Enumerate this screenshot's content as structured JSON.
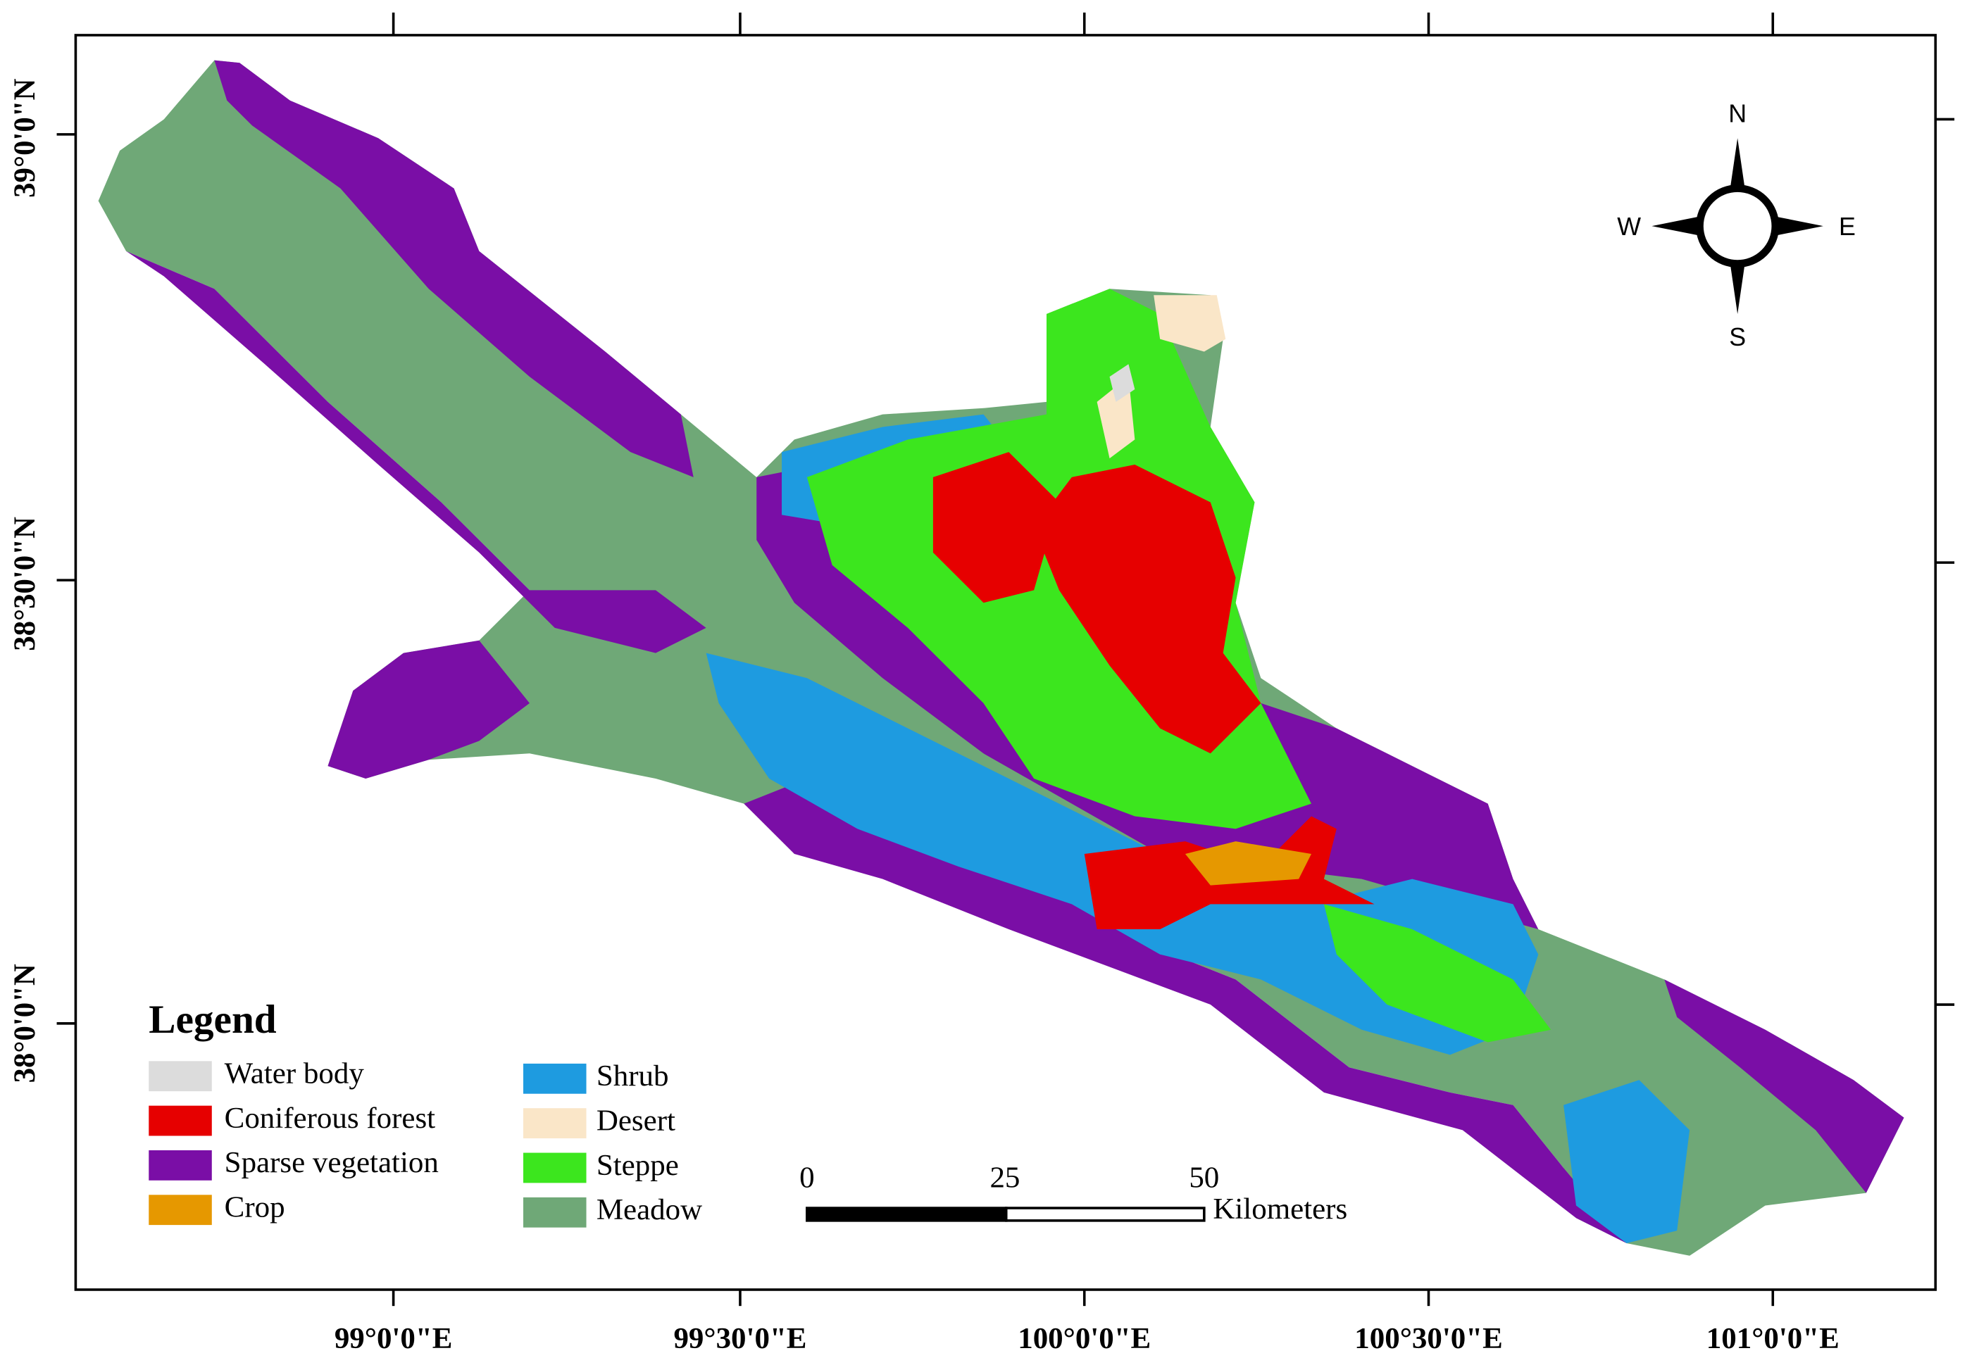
{
  "frame": {
    "longitude_labels": [
      "99°0'0\"E",
      "99°30'0\"E",
      "100°0'0\"E",
      "100°30'0\"E",
      "101°0'0\"E"
    ],
    "latitude_labels": [
      "39°0'0\"N",
      "38°30'0\"N",
      "38°0'0\"N"
    ]
  },
  "compass": {
    "north": "N",
    "south": "S",
    "west": "W",
    "east": "E"
  },
  "legend": {
    "title": "Legend",
    "items": [
      {
        "label": "Water body",
        "color": "#dcdcdc"
      },
      {
        "label": "Coniferous forest",
        "color": "#e60000"
      },
      {
        "label": "Sparse vegetation",
        "color": "#7a0ea6"
      },
      {
        "label": "Crop",
        "color": "#e69800"
      },
      {
        "label": "Shrub",
        "color": "#1e9be0"
      },
      {
        "label": "Desert",
        "color": "#fae6c8"
      },
      {
        "label": "Steppe",
        "color": "#3ce61e"
      },
      {
        "label": "Meadow",
        "color": "#6fa877"
      }
    ]
  },
  "scale_bar": {
    "labels": [
      "0",
      "25",
      "50"
    ],
    "unit": "Kilometers"
  }
}
